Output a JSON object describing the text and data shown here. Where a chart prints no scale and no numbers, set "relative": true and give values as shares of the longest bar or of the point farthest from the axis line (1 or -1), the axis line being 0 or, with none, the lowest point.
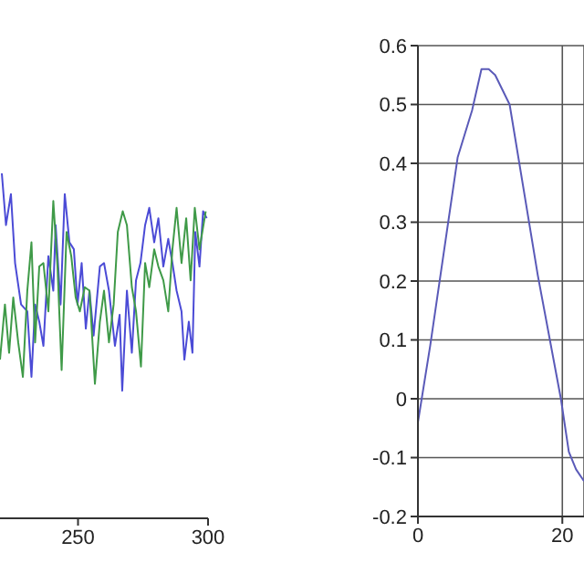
{
  "chart_data": [
    {
      "type": "line",
      "relative": true,
      "xlim": [
        220,
        300
      ],
      "xticks": [
        250,
        300
      ],
      "series": [
        {
          "color": "#4b4bd6",
          "x": [
            220.7,
            222.3,
            224.2,
            225.8,
            228.1,
            230.5,
            232.1,
            233.5,
            235.1,
            236.7,
            238.6,
            240.5,
            241.4,
            243.3,
            244.9,
            246.7,
            248.4,
            249.8,
            251.4,
            253,
            254.4,
            256,
            258.4,
            260,
            261.9,
            264.2,
            266,
            267,
            268.8,
            270.7,
            272.3,
            274,
            275.8,
            277.4,
            279.3,
            280.9,
            282.8,
            284.7,
            286.3,
            287.9,
            289.8,
            290.9,
            292.6,
            294,
            295.1,
            296.7,
            298.1,
            299.5
          ],
          "values": [
            1.0,
            0.85,
            0.94,
            0.74,
            0.62,
            0.6,
            0.41,
            0.62,
            0.57,
            0.5,
            0.76,
            0.66,
            0.85,
            0.62,
            0.94,
            0.8,
            0.78,
            0.62,
            0.74,
            0.55,
            0.66,
            0.53,
            0.73,
            0.74,
            0.66,
            0.5,
            0.59,
            0.37,
            0.66,
            0.48,
            0.69,
            0.74,
            0.85,
            0.9,
            0.8,
            0.87,
            0.73,
            0.81,
            0.74,
            0.66,
            0.6,
            0.46,
            0.57,
            0.48,
            0.83,
            0.73,
            0.89,
            0.87
          ]
        },
        {
          "color": "#3f9a48",
          "x": [
            220,
            221.9,
            223.5,
            225.1,
            227,
            228.8,
            230.5,
            232.1,
            233.5,
            235.1,
            236.7,
            238.6,
            240.5,
            242.1,
            243.7,
            245.6,
            247.4,
            249.1,
            250.7,
            252.6,
            254.4,
            256.5,
            258.4,
            260,
            261.9,
            263.7,
            265.3,
            267.2,
            268.8,
            270.7,
            272.3,
            274.2,
            275.8,
            277.4,
            279.3,
            280.9,
            282.8,
            284.7,
            286.3,
            287.9,
            289.8,
            291.6,
            293.3,
            294.9,
            296.7,
            299.1
          ],
          "values": [
            0.46,
            0.62,
            0.48,
            0.64,
            0.51,
            0.41,
            0.66,
            0.8,
            0.51,
            0.73,
            0.74,
            0.6,
            0.92,
            0.73,
            0.43,
            0.83,
            0.76,
            0.64,
            0.6,
            0.67,
            0.66,
            0.39,
            0.57,
            0.66,
            0.51,
            0.62,
            0.83,
            0.89,
            0.85,
            0.67,
            0.6,
            0.44,
            0.74,
            0.67,
            0.78,
            0.73,
            0.69,
            0.6,
            0.78,
            0.9,
            0.74,
            0.87,
            0.69,
            0.9,
            0.78,
            0.89
          ]
        }
      ]
    },
    {
      "type": "line",
      "xlim": [
        0,
        23
      ],
      "xticks": [
        0,
        20
      ],
      "ylim": [
        -0.2,
        0.6
      ],
      "yticks": [
        -0.2,
        -0.1,
        0,
        0.1,
        0.2,
        0.3,
        0.4,
        0.5,
        0.6
      ],
      "grid": true,
      "series": [
        {
          "color": "#5a5ab8",
          "x": [
            0,
            1.7,
            5.5,
            7.5,
            8.8,
            9.8,
            10.7,
            12.7,
            16.6,
            19.8,
            20.9,
            21.9,
            23
          ],
          "values": [
            -0.04,
            0.09,
            0.41,
            0.49,
            0.56,
            0.56,
            0.55,
            0.5,
            0.21,
            0,
            -0.09,
            -0.12,
            -0.14
          ]
        }
      ]
    }
  ]
}
